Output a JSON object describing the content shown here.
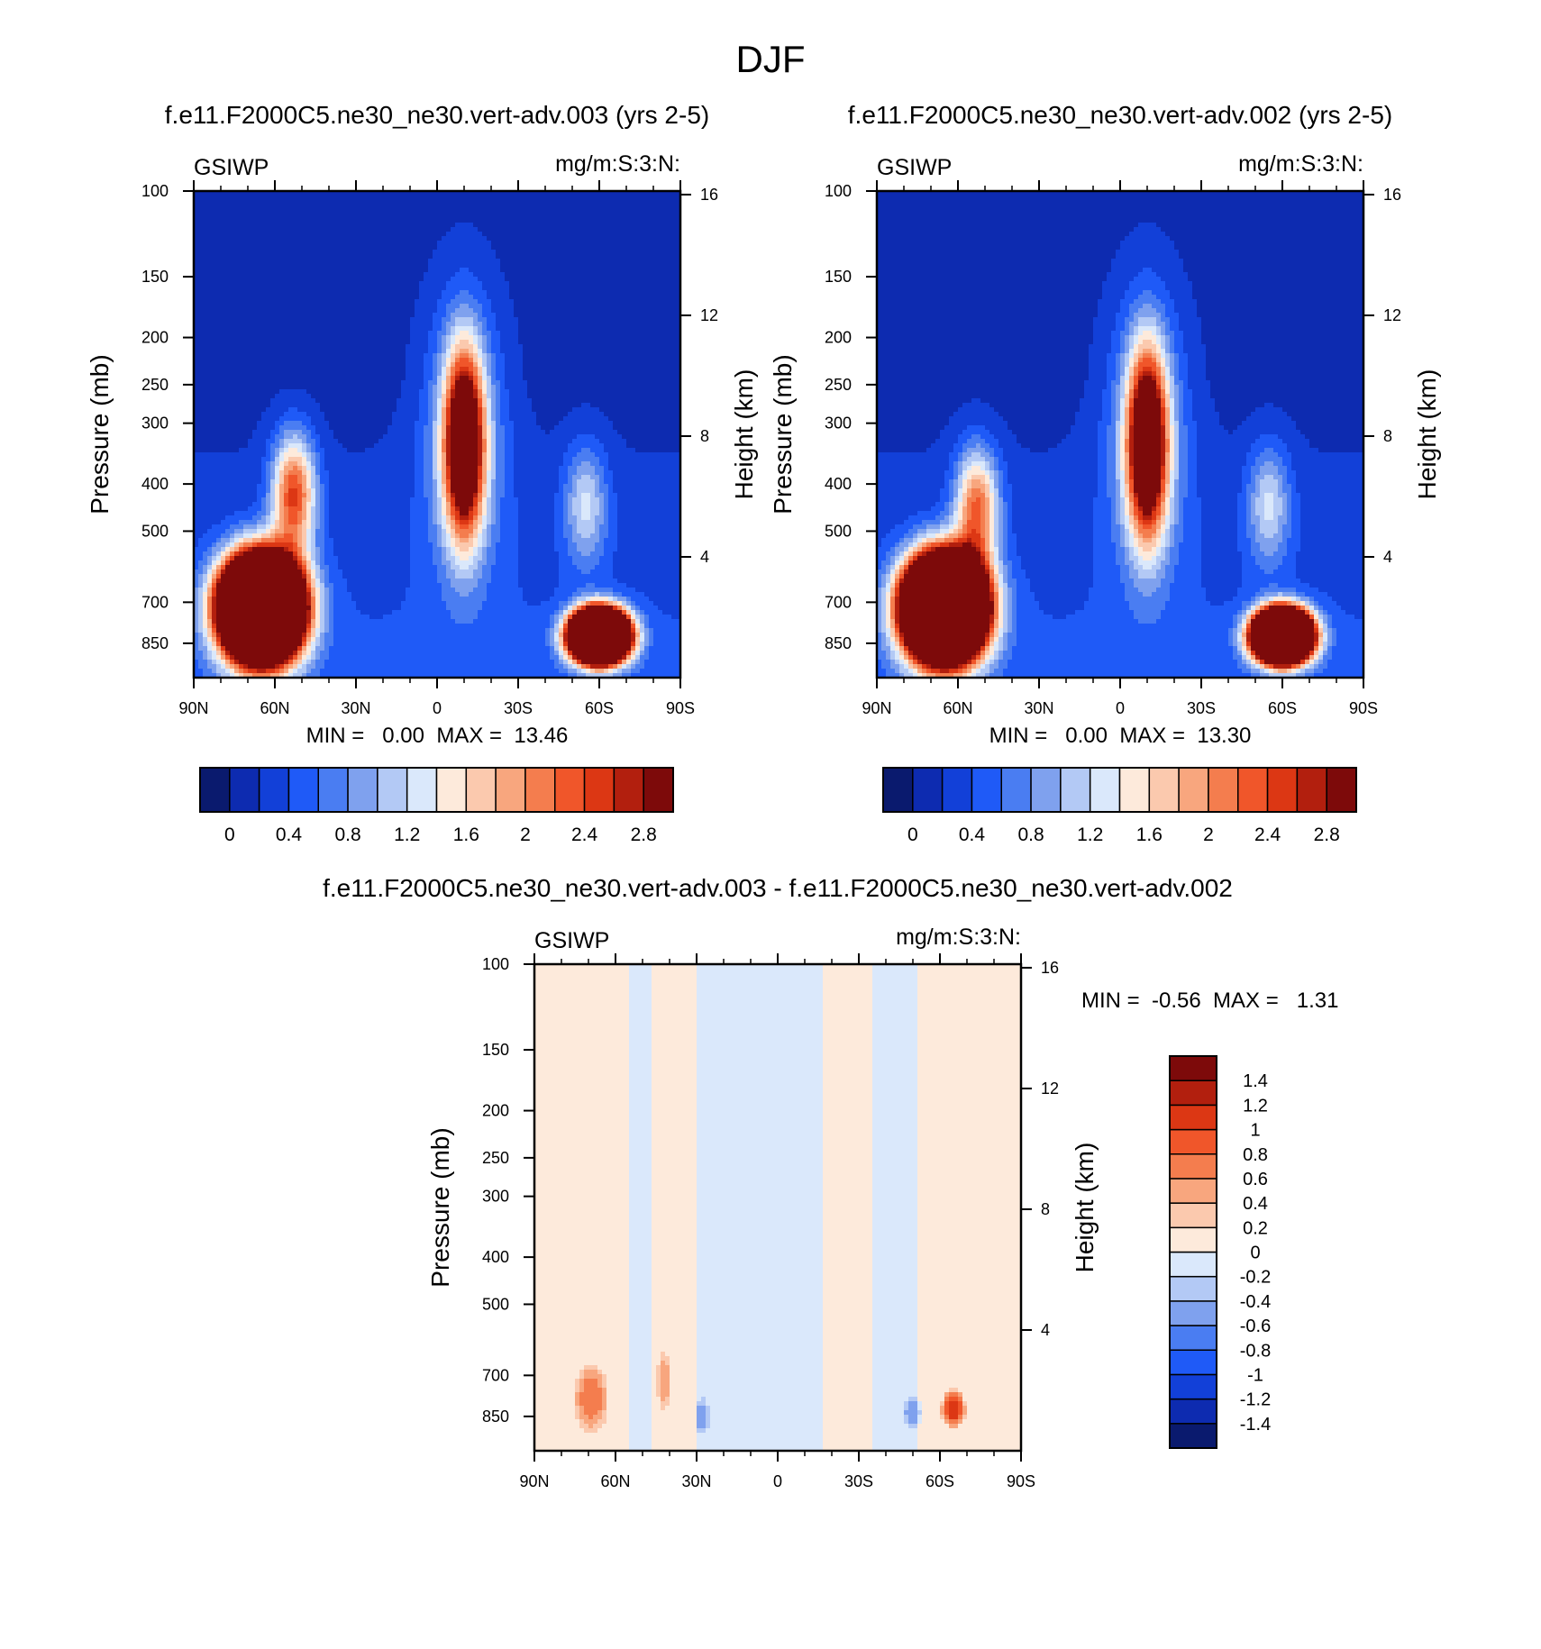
{
  "figure": {
    "title": "DJF"
  },
  "colormap": {
    "colors": [
      "#0a1a6e",
      "#0d2bb0",
      "#1240d8",
      "#1f5af7",
      "#4a7df2",
      "#7fa1ee",
      "#b3c9f5",
      "#dae8fb",
      "#fdeadb",
      "#fbc9ae",
      "#f8a67e",
      "#f47d4e",
      "#f0562a",
      "#dc3714",
      "#b21f0e",
      "#7d0a0a"
    ]
  },
  "chart_data": [
    {
      "type": "heatmap",
      "title": "f.e11.F2000C5.ne30_ne30.vert-adv.003 (yrs 2-5)",
      "left_label": "GSIWP",
      "right_label": "mg/m:S:3:N:",
      "xlabel": "",
      "ylabel": "Pressure (mb)",
      "y2label": "Height (km)",
      "x_ticks": [
        "90N",
        "60N",
        "30N",
        "0",
        "30S",
        "60S",
        "90S"
      ],
      "y_ticks": [
        "100",
        "150",
        "200",
        "250",
        "300",
        "400",
        "500",
        "700",
        "850"
      ],
      "y2_ticks": [
        "16",
        "12",
        "8",
        "4"
      ],
      "ylim": [
        100,
        1000
      ],
      "y_scale": "log",
      "min_max_text": "MIN =   0.00  MAX =  13.46",
      "min": 0.0,
      "max": 13.46,
      "colorbar": {
        "orientation": "horizontal",
        "levels": [
          0,
          0.2,
          0.4,
          0.6,
          0.8,
          1.0,
          1.2,
          1.4,
          1.6,
          1.8,
          2.0,
          2.2,
          2.4,
          2.6,
          2.8
        ],
        "tick_labels": [
          "0",
          "0.4",
          "0.8",
          "1.2",
          "1.6",
          "2",
          "2.4",
          "2.8"
        ]
      },
      "features": [
        {
          "lat": 65,
          "p": 720,
          "r_lat": 17,
          "r_lnp": 0.28,
          "value": 13.0
        },
        {
          "lat": 53,
          "p": 420,
          "r_lat": 10,
          "r_lnp": 0.35,
          "value": 2.2
        },
        {
          "lat": -10,
          "p": 330,
          "r_lat": 9,
          "r_lnp": 0.55,
          "value": 3.4
        },
        {
          "lat": -10,
          "p": 320,
          "r_lat": 19,
          "r_lnp": 0.8,
          "value": 0.9
        },
        {
          "lat": -60,
          "p": 820,
          "r_lat": 12,
          "r_lnp": 0.14,
          "value": 13.0
        },
        {
          "lat": -55,
          "p": 440,
          "r_lat": 10,
          "r_lnp": 0.35,
          "value": 1.0
        }
      ]
    },
    {
      "type": "heatmap",
      "title": "f.e11.F2000C5.ne30_ne30.vert-adv.002 (yrs 2-5)",
      "left_label": "GSIWP",
      "right_label": "mg/m:S:3:N:",
      "xlabel": "",
      "ylabel": "Pressure (mb)",
      "y2label": "Height (km)",
      "x_ticks": [
        "90N",
        "60N",
        "30N",
        "0",
        "30S",
        "60S",
        "90S"
      ],
      "y_ticks": [
        "100",
        "150",
        "200",
        "250",
        "300",
        "400",
        "500",
        "700",
        "850"
      ],
      "y2_ticks": [
        "16",
        "12",
        "8",
        "4"
      ],
      "ylim": [
        100,
        1000
      ],
      "y_scale": "log",
      "min_max_text": "MIN =   0.00  MAX =  13.30",
      "min": 0.0,
      "max": 13.3,
      "colorbar": {
        "orientation": "horizontal",
        "levels": [
          0,
          0.2,
          0.4,
          0.6,
          0.8,
          1.0,
          1.2,
          1.4,
          1.6,
          1.8,
          2.0,
          2.2,
          2.4,
          2.6,
          2.8
        ],
        "tick_labels": [
          "0",
          "0.4",
          "0.8",
          "1.2",
          "1.6",
          "2",
          "2.4",
          "2.8"
        ]
      },
      "features": [
        {
          "lat": 65,
          "p": 720,
          "r_lat": 17,
          "r_lnp": 0.28,
          "value": 13.0
        },
        {
          "lat": 53,
          "p": 450,
          "r_lat": 10,
          "r_lnp": 0.35,
          "value": 2.0
        },
        {
          "lat": -10,
          "p": 330,
          "r_lat": 9,
          "r_lnp": 0.55,
          "value": 3.4
        },
        {
          "lat": -10,
          "p": 320,
          "r_lat": 19,
          "r_lnp": 0.8,
          "value": 0.9
        },
        {
          "lat": -60,
          "p": 820,
          "r_lat": 12,
          "r_lnp": 0.14,
          "value": 13.0
        },
        {
          "lat": -55,
          "p": 440,
          "r_lat": 10,
          "r_lnp": 0.35,
          "value": 1.0
        }
      ]
    },
    {
      "type": "heatmap",
      "title": "f.e11.F2000C5.ne30_ne30.vert-adv.003 - f.e11.F2000C5.ne30_ne30.vert-adv.002",
      "left_label": "GSIWP",
      "right_label": "mg/m:S:3:N:",
      "xlabel": "",
      "ylabel": "Pressure (mb)",
      "y2label": "Height (km)",
      "x_ticks": [
        "90N",
        "60N",
        "30N",
        "0",
        "30S",
        "60S",
        "90S"
      ],
      "y_ticks": [
        "100",
        "150",
        "200",
        "250",
        "300",
        "400",
        "500",
        "700",
        "850"
      ],
      "y2_ticks": [
        "16",
        "12",
        "8",
        "4"
      ],
      "ylim": [
        100,
        1000
      ],
      "y_scale": "log",
      "min_max_text": "MIN =  -0.56  MAX =   1.31",
      "min": -0.56,
      "max": 1.31,
      "colorbar": {
        "orientation": "vertical",
        "levels": [
          -1.4,
          -1.2,
          -1.0,
          -0.8,
          -0.6,
          -0.4,
          -0.2,
          0,
          0.2,
          0.4,
          0.6,
          0.8,
          1.0,
          1.2,
          1.4
        ],
        "tick_labels": [
          "-1.4",
          "-1.2",
          "-1",
          "-0.8",
          "-0.6",
          "-0.4",
          "-0.2",
          "0",
          "0.2",
          "0.4",
          "0.6",
          "0.8",
          "1",
          "1.2",
          "1.4"
        ]
      },
      "bands": [
        {
          "lat_from": 90,
          "lat_to": 55,
          "value": 0.1
        },
        {
          "lat_from": 55,
          "lat_to": 46,
          "value": -0.1
        },
        {
          "lat_from": 46,
          "lat_to": 30,
          "value": 0.1
        },
        {
          "lat_from": 30,
          "lat_to": -16,
          "value": -0.1
        },
        {
          "lat_from": -16,
          "lat_to": -35,
          "value": 0.1
        },
        {
          "lat_from": -35,
          "lat_to": -52,
          "value": -0.1
        },
        {
          "lat_from": -52,
          "lat_to": -90,
          "value": 0.1
        }
      ],
      "features": [
        {
          "lat": 69,
          "p": 780,
          "r_lat": 7,
          "r_lnp": 0.18,
          "value": 0.7
        },
        {
          "lat": 42,
          "p": 720,
          "r_lat": 3,
          "r_lnp": 0.15,
          "value": 0.5
        },
        {
          "lat": -65,
          "p": 820,
          "r_lat": 5,
          "r_lnp": 0.1,
          "value": 1.1
        },
        {
          "lat": -50,
          "p": 830,
          "r_lat": 4,
          "r_lnp": 0.08,
          "value": -0.5
        },
        {
          "lat": 28,
          "p": 850,
          "r_lat": 3,
          "r_lnp": 0.1,
          "value": -0.5
        }
      ]
    }
  ]
}
